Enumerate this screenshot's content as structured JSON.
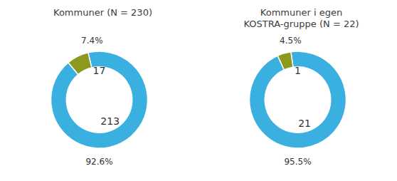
{
  "chart_data": [
    {
      "type": "donut",
      "title": "Kommuner (N = 230)",
      "values": [
        213,
        17
      ],
      "colors": [
        "#3ab0e0",
        "#8b9a1f"
      ],
      "data_labels": true,
      "annotations": [
        "92.6%",
        "7.4%"
      ]
    },
    {
      "type": "donut",
      "title": "Kommuner i egen\nKOSTRA-gruppe (N = 22)",
      "values": [
        21,
        1
      ],
      "colors": [
        "#3ab0e0",
        "#8b9a1f"
      ],
      "data_labels": true,
      "annotations": [
        "95.5%",
        "4.5%"
      ]
    }
  ]
}
